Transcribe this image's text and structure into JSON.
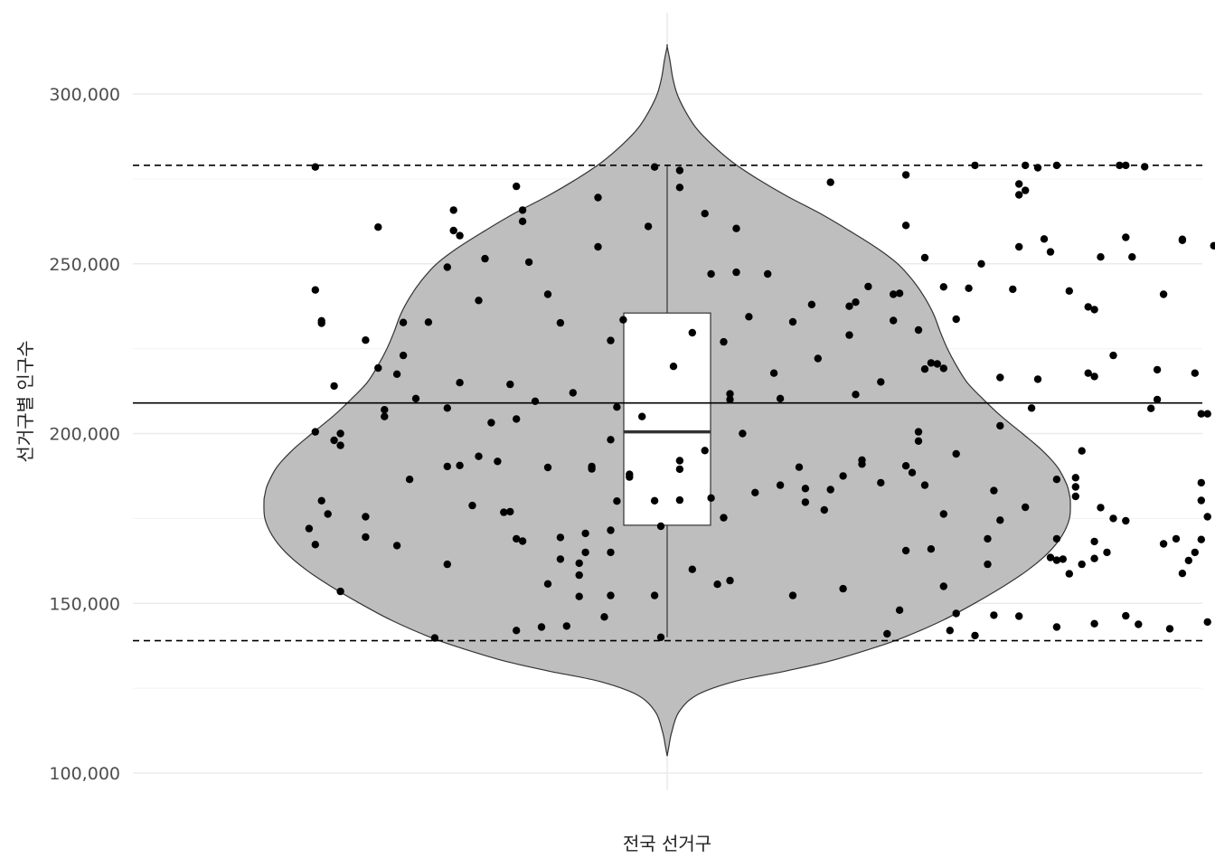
{
  "chart_data": {
    "type": "violin",
    "xlabel": "전국 선거구",
    "ylabel": "선거구별 인구수",
    "categories": [
      "전국 선거구"
    ],
    "ylim": [
      100000,
      320000
    ],
    "y_ticks": [
      100000,
      150000,
      200000,
      250000,
      300000
    ],
    "y_tick_labels": [
      "100,000",
      "150,000",
      "200,000",
      "250,000",
      "300,000"
    ],
    "reference_lines": {
      "mean": 209000,
      "upper_limit": 279000,
      "lower_limit": 139000
    },
    "boxplot": {
      "min": 140000,
      "q1": 173000,
      "median": 200500,
      "q3": 235500,
      "max": 279000
    },
    "violin_range": [
      105000,
      314000
    ],
    "points": [
      [
        -0.56,
        278500
      ],
      [
        -0.56,
        242300
      ],
      [
        -0.55,
        233200
      ],
      [
        -0.55,
        232500
      ],
      [
        -0.53,
        214000
      ],
      [
        -0.56,
        200500
      ],
      [
        -0.52,
        200000
      ],
      [
        -0.52,
        196500
      ],
      [
        -0.53,
        198000
      ],
      [
        -0.55,
        180200
      ],
      [
        -0.54,
        176300
      ],
      [
        -0.57,
        172000
      ],
      [
        -0.56,
        167300
      ],
      [
        -0.52,
        153500
      ],
      [
        -0.48,
        227500
      ],
      [
        -0.46,
        219300
      ],
      [
        -0.46,
        260800
      ],
      [
        -0.45,
        205000
      ],
      [
        -0.45,
        207000
      ],
      [
        -0.43,
        217500
      ],
      [
        -0.42,
        223000
      ],
      [
        -0.42,
        232700
      ],
      [
        -0.48,
        175500
      ],
      [
        -0.48,
        169500
      ],
      [
        -0.43,
        167000
      ],
      [
        -0.41,
        186500
      ],
      [
        -0.4,
        210300
      ],
      [
        -0.38,
        232800
      ],
      [
        -0.37,
        139800
      ],
      [
        -0.35,
        161500
      ],
      [
        -0.35,
        190300
      ],
      [
        -0.35,
        207500
      ],
      [
        -0.35,
        249000
      ],
      [
        -0.34,
        265800
      ],
      [
        -0.34,
        259800
      ],
      [
        -0.33,
        258300
      ],
      [
        -0.33,
        215000
      ],
      [
        -0.33,
        190600
      ],
      [
        -0.31,
        178800
      ],
      [
        -0.3,
        239200
      ],
      [
        -0.3,
        193300
      ],
      [
        -0.29,
        251500
      ],
      [
        -0.28,
        203200
      ],
      [
        -0.27,
        191800
      ],
      [
        -0.26,
        176800
      ],
      [
        -0.25,
        177000
      ],
      [
        -0.25,
        214500
      ],
      [
        -0.24,
        272800
      ],
      [
        -0.24,
        204300
      ],
      [
        -0.24,
        169000
      ],
      [
        -0.23,
        168300
      ],
      [
        -0.23,
        265800
      ],
      [
        -0.23,
        262500
      ],
      [
        -0.22,
        250500
      ],
      [
        -0.24,
        142000
      ],
      [
        -0.21,
        209500
      ],
      [
        -0.2,
        143000
      ],
      [
        -0.19,
        241000
      ],
      [
        -0.19,
        190000
      ],
      [
        -0.19,
        155700
      ],
      [
        -0.17,
        232600
      ],
      [
        -0.17,
        163000
      ],
      [
        -0.17,
        169400
      ],
      [
        -0.16,
        143300
      ],
      [
        -0.15,
        212000
      ],
      [
        -0.14,
        152000
      ],
      [
        -0.14,
        158300
      ],
      [
        -0.14,
        161800
      ],
      [
        -0.13,
        170600
      ],
      [
        -0.13,
        165000
      ],
      [
        -0.12,
        190300
      ],
      [
        -0.12,
        189600
      ],
      [
        -0.11,
        255000
      ],
      [
        -0.11,
        269500
      ],
      [
        -0.1,
        146000
      ],
      [
        -0.09,
        227400
      ],
      [
        -0.09,
        198200
      ],
      [
        -0.08,
        207800
      ],
      [
        -0.09,
        171500
      ],
      [
        -0.09,
        165000
      ],
      [
        -0.09,
        152300
      ],
      [
        -0.08,
        180100
      ],
      [
        -0.07,
        233500
      ],
      [
        -0.06,
        188000
      ],
      [
        -0.06,
        187200
      ],
      [
        -0.04,
        205000
      ],
      [
        -0.03,
        261000
      ],
      [
        -0.02,
        278500
      ],
      [
        -0.02,
        180200
      ],
      [
        -0.02,
        152300
      ],
      [
        -0.01,
        172700
      ],
      [
        -0.01,
        140000
      ],
      [
        0.01,
        219800
      ],
      [
        0.02,
        192000
      ],
      [
        0.02,
        189500
      ],
      [
        0.02,
        277500
      ],
      [
        0.02,
        272500
      ],
      [
        0.02,
        180400
      ],
      [
        0.04,
        160000
      ],
      [
        0.04,
        229700
      ],
      [
        0.06,
        264800
      ],
      [
        0.06,
        195000
      ],
      [
        0.07,
        181000
      ],
      [
        0.07,
        247000
      ],
      [
        0.08,
        155600
      ],
      [
        0.09,
        175200
      ],
      [
        0.09,
        227000
      ],
      [
        0.1,
        210000
      ],
      [
        0.1,
        211700
      ],
      [
        0.1,
        156700
      ],
      [
        0.11,
        247500
      ],
      [
        0.11,
        260400
      ],
      [
        0.12,
        200000
      ],
      [
        0.13,
        234400
      ],
      [
        0.14,
        182600
      ],
      [
        0.16,
        247000
      ],
      [
        0.17,
        217800
      ],
      [
        0.18,
        210300
      ],
      [
        0.18,
        184800
      ],
      [
        0.2,
        232900
      ],
      [
        0.2,
        152300
      ],
      [
        0.21,
        190100
      ],
      [
        0.22,
        183800
      ],
      [
        0.22,
        179800
      ],
      [
        0.23,
        238000
      ],
      [
        0.24,
        222100
      ],
      [
        0.25,
        177500
      ],
      [
        0.26,
        274000
      ],
      [
        0.26,
        183500
      ],
      [
        0.28,
        154300
      ],
      [
        0.28,
        187500
      ],
      [
        0.29,
        237500
      ],
      [
        0.29,
        229000
      ],
      [
        0.3,
        238700
      ],
      [
        0.3,
        211500
      ],
      [
        0.31,
        191000
      ],
      [
        0.31,
        192200
      ],
      [
        0.32,
        243300
      ],
      [
        0.34,
        215200
      ],
      [
        0.34,
        185500
      ],
      [
        0.35,
        141000
      ],
      [
        0.36,
        241000
      ],
      [
        0.36,
        233300
      ],
      [
        0.37,
        241300
      ],
      [
        0.37,
        148000
      ],
      [
        0.38,
        261300
      ],
      [
        0.38,
        276200
      ],
      [
        0.38,
        190500
      ],
      [
        0.38,
        165500
      ],
      [
        0.39,
        188500
      ],
      [
        0.4,
        230500
      ],
      [
        0.4,
        197800
      ],
      [
        0.4,
        200500
      ],
      [
        0.41,
        219000
      ],
      [
        0.41,
        251800
      ],
      [
        0.41,
        184800
      ],
      [
        0.42,
        220800
      ],
      [
        0.42,
        166000
      ],
      [
        0.43,
        220500
      ],
      [
        0.44,
        243200
      ],
      [
        0.44,
        219200
      ],
      [
        0.44,
        155000
      ],
      [
        0.44,
        176300
      ],
      [
        0.45,
        142000
      ],
      [
        0.46,
        233700
      ],
      [
        0.46,
        194000
      ],
      [
        0.46,
        147000
      ],
      [
        0.48,
        242800
      ],
      [
        0.49,
        140500
      ],
      [
        0.49,
        279000
      ],
      [
        0.5,
        250000
      ],
      [
        0.51,
        169000
      ],
      [
        0.51,
        161500
      ],
      [
        0.52,
        183200
      ],
      [
        0.52,
        146500
      ],
      [
        0.53,
        216500
      ],
      [
        0.53,
        202300
      ],
      [
        0.53,
        174500
      ],
      [
        0.55,
        242500
      ],
      [
        0.56,
        273500
      ],
      [
        0.56,
        270300
      ],
      [
        0.56,
        255000
      ],
      [
        0.56,
        146200
      ],
      [
        0.57,
        178300
      ],
      [
        0.57,
        279000
      ],
      [
        0.57,
        271600
      ],
      [
        0.58,
        207500
      ],
      [
        0.59,
        278300
      ],
      [
        0.59,
        216000
      ],
      [
        0.6,
        257300
      ],
      [
        0.61,
        253500
      ],
      [
        0.61,
        163500
      ],
      [
        0.62,
        162700
      ],
      [
        0.62,
        186500
      ],
      [
        0.62,
        169000
      ],
      [
        0.62,
        279000
      ],
      [
        0.62,
        143000
      ],
      [
        0.63,
        163000
      ],
      [
        0.64,
        242000
      ],
      [
        0.64,
        158700
      ],
      [
        0.65,
        187000
      ],
      [
        0.65,
        184300
      ],
      [
        0.65,
        181500
      ],
      [
        0.66,
        194900
      ],
      [
        0.66,
        161500
      ],
      [
        0.67,
        237300
      ],
      [
        0.67,
        217800
      ],
      [
        0.68,
        236500
      ],
      [
        0.68,
        216800
      ],
      [
        0.68,
        168200
      ],
      [
        0.68,
        144000
      ],
      [
        0.68,
        163200
      ],
      [
        0.69,
        178200
      ],
      [
        0.69,
        252000
      ],
      [
        0.7,
        165000
      ],
      [
        0.71,
        223000
      ],
      [
        0.71,
        175000
      ],
      [
        0.72,
        279000
      ],
      [
        0.73,
        174300
      ],
      [
        0.73,
        146300
      ],
      [
        0.73,
        279000
      ],
      [
        0.73,
        257800
      ],
      [
        0.74,
        252000
      ],
      [
        0.75,
        143800
      ],
      [
        0.76,
        278600
      ],
      [
        0.77,
        207400
      ],
      [
        0.78,
        210000
      ],
      [
        0.78,
        218800
      ],
      [
        0.79,
        241000
      ],
      [
        0.79,
        167500
      ],
      [
        0.8,
        142500
      ],
      [
        0.81,
        169000
      ],
      [
        0.82,
        257200
      ],
      [
        0.82,
        256900
      ],
      [
        0.82,
        158800
      ],
      [
        0.83,
        162600
      ],
      [
        0.84,
        217800
      ],
      [
        0.84,
        165000
      ],
      [
        0.85,
        168800
      ],
      [
        0.85,
        185500
      ],
      [
        0.85,
        205800
      ],
      [
        0.85,
        180300
      ],
      [
        0.86,
        205800
      ],
      [
        0.86,
        175500
      ],
      [
        0.86,
        144500
      ],
      [
        0.87,
        255300
      ],
      [
        0.88,
        204500
      ],
      [
        0.88,
        181000
      ],
      [
        0.89,
        229200
      ],
      [
        0.89,
        235200
      ],
      [
        0.89,
        145200
      ],
      [
        0.89,
        258000
      ],
      [
        0.89,
        250300
      ],
      [
        0.9,
        152700
      ],
      [
        0.91,
        259500
      ],
      [
        0.91,
        208000
      ],
      [
        0.92,
        204000
      ],
      [
        0.92,
        203000
      ],
      [
        0.92,
        200600
      ],
      [
        0.92,
        269400
      ],
      [
        0.93,
        197200
      ],
      [
        0.93,
        160000
      ],
      [
        0.94,
        226200
      ],
      [
        0.94,
        188000
      ],
      [
        0.94,
        189000
      ]
    ]
  }
}
